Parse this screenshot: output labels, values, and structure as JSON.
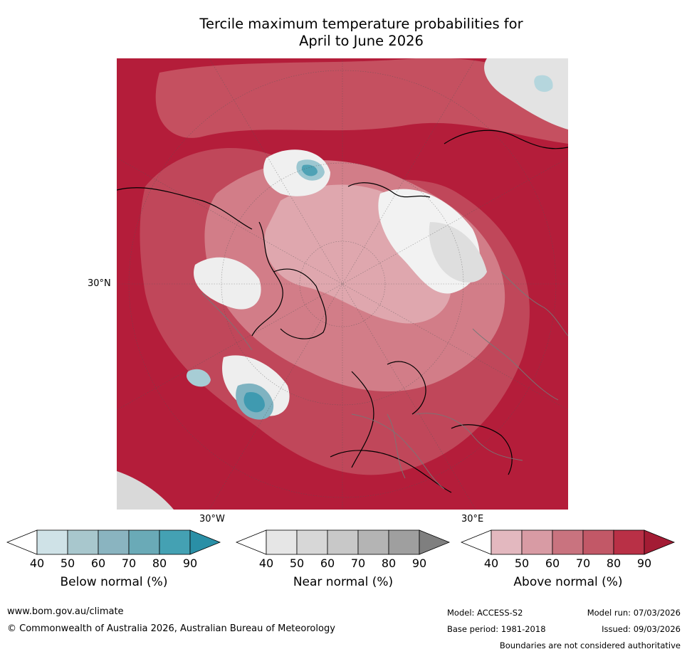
{
  "title_line1": "Tercile maximum temperature probabilities for",
  "title_line2": "April to June 2026",
  "map": {
    "lat_label": "30°N",
    "lon_label_left": "30°W",
    "lon_label_right": "30°E"
  },
  "legends": {
    "below": {
      "label": "Below normal (%)",
      "ticks": [
        "40",
        "50",
        "60",
        "70",
        "80",
        "90"
      ],
      "colors": [
        "#ffffff",
        "#cfe2e7",
        "#a8c7cd",
        "#8ab4c0",
        "#6aaab7",
        "#44a1b3",
        "#2a8fa6"
      ]
    },
    "near": {
      "label": "Near normal (%)",
      "ticks": [
        "40",
        "50",
        "60",
        "70",
        "80",
        "90"
      ],
      "colors": [
        "#ffffff",
        "#e6e6e6",
        "#d7d7d7",
        "#c8c8c8",
        "#b4b4b4",
        "#9f9f9f",
        "#7f7f7f"
      ]
    },
    "above": {
      "label": "Above normal (%)",
      "ticks": [
        "40",
        "50",
        "60",
        "70",
        "80",
        "90"
      ],
      "colors": [
        "#ffffff",
        "#e3b8bf",
        "#d89ba4",
        "#c9737f",
        "#c25867",
        "#b93046",
        "#a31c34"
      ]
    }
  },
  "footer": {
    "website": "www.bom.gov.au/climate",
    "copyright": "© Commonwealth of Australia 2026, Australian Bureau of Meteorology",
    "model": "Model: ACCESS-S2",
    "model_run": "Model run: 07/03/2026",
    "base_period": "Base period: 1981-2018",
    "issued": "Issued: 09/03/2026",
    "disclaimer": "Boundaries are not considered authoritative"
  }
}
